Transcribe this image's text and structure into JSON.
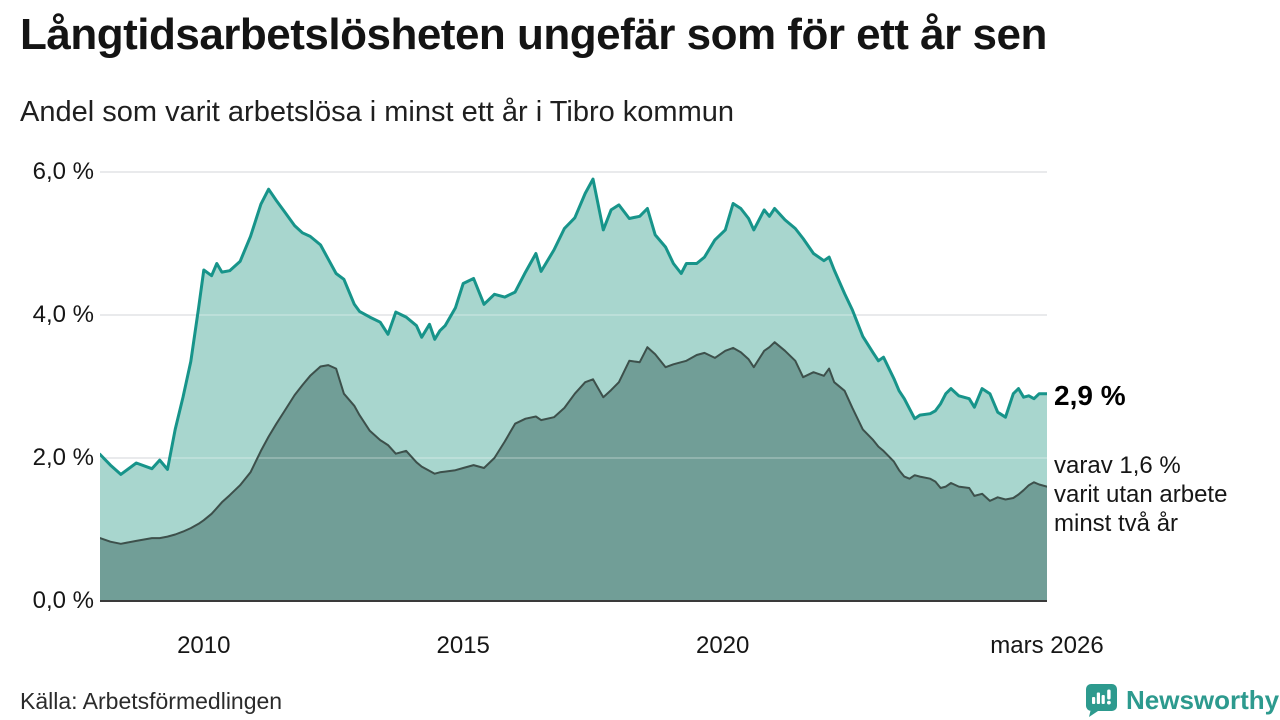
{
  "header": {
    "title": "Långtidsarbetslösheten ungefär som för ett år sen",
    "subtitle": "Andel som varit arbetslösa i minst ett år i Tibro kommun"
  },
  "annotations": {
    "latest_total": "2,9 %",
    "detail_lines": [
      "varav 1,6 %",
      "varit utan arbete",
      "minst två år"
    ]
  },
  "footer": {
    "source": "Källa: Arbetsförmedlingen",
    "brand": "Newsworthy",
    "brand_icon": "newsworthy-speech-bubble-bar-chart-icon",
    "brand_color": "#2d9a8e"
  },
  "chart_data": {
    "type": "area",
    "title": "Långtidsarbetslösheten ungefär som för ett år sen",
    "subtitle": "Andel som varit arbetslösa i minst ett år i Tibro kommun",
    "xlabel": "",
    "ylabel": "",
    "grid": true,
    "legend_position": "none",
    "x_domain": [
      2008,
      2026.25
    ],
    "y_domain": [
      0,
      6.2
    ],
    "x_ticks": [
      {
        "value": 2010,
        "label": "2010"
      },
      {
        "value": 2015,
        "label": "2015"
      },
      {
        "value": 2020,
        "label": "2020"
      },
      {
        "value": 2026.25,
        "label": "mars 2026"
      }
    ],
    "y_ticks": [
      {
        "value": 0,
        "label": "0,0 %"
      },
      {
        "value": 2,
        "label": "2,0 %"
      },
      {
        "value": 4,
        "label": "4,0 %"
      },
      {
        "value": 6,
        "label": "6,0 %"
      }
    ],
    "series": [
      {
        "id": "unemployed-at-least-one-year",
        "end_value_label": "2,9 %",
        "stroke": "#17948a",
        "fill": "#a8d6ce",
        "stroke_width": 3
      },
      {
        "id": "unemployed-at-least-two-years",
        "end_value_label": "1,6 %",
        "stroke": "#3d504b",
        "fill": "#719e97",
        "stroke_width": 2
      }
    ],
    "gridline_color": "#d9dade",
    "axis_line_color": "#3a3a3a",
    "points": [
      [
        2008.0,
        2.05,
        0.88
      ],
      [
        2008.2,
        1.9,
        0.83
      ],
      [
        2008.4,
        1.77,
        0.8
      ],
      [
        2008.7,
        1.93,
        0.84
      ],
      [
        2009.0,
        1.85,
        0.88
      ],
      [
        2009.15,
        1.97,
        0.88
      ],
      [
        2009.3,
        1.84,
        0.9
      ],
      [
        2009.45,
        2.4,
        0.93
      ],
      [
        2009.6,
        2.85,
        0.97
      ],
      [
        2009.75,
        3.35,
        1.02
      ],
      [
        2009.9,
        4.1,
        1.08
      ],
      [
        2010.0,
        4.63,
        1.13
      ],
      [
        2010.15,
        4.55,
        1.22
      ],
      [
        2010.25,
        4.72,
        1.3
      ],
      [
        2010.35,
        4.6,
        1.38
      ],
      [
        2010.5,
        4.62,
        1.48
      ],
      [
        2010.7,
        4.75,
        1.62
      ],
      [
        2010.9,
        5.1,
        1.8
      ],
      [
        2011.1,
        5.55,
        2.1
      ],
      [
        2011.25,
        5.76,
        2.3
      ],
      [
        2011.4,
        5.6,
        2.48
      ],
      [
        2011.55,
        5.45,
        2.65
      ],
      [
        2011.75,
        5.25,
        2.88
      ],
      [
        2011.9,
        5.15,
        3.02
      ],
      [
        2012.05,
        5.1,
        3.15
      ],
      [
        2012.25,
        4.98,
        3.28
      ],
      [
        2012.4,
        4.78,
        3.3
      ],
      [
        2012.55,
        4.58,
        3.25
      ],
      [
        2012.7,
        4.5,
        2.9
      ],
      [
        2012.9,
        4.15,
        2.73
      ],
      [
        2013.0,
        4.05,
        2.6
      ],
      [
        2013.2,
        3.97,
        2.38
      ],
      [
        2013.4,
        3.9,
        2.25
      ],
      [
        2013.55,
        3.73,
        2.18
      ],
      [
        2013.7,
        4.04,
        2.06
      ],
      [
        2013.9,
        3.97,
        2.1
      ],
      [
        2014.1,
        3.85,
        1.94
      ],
      [
        2014.2,
        3.69,
        1.88
      ],
      [
        2014.35,
        3.87,
        1.82
      ],
      [
        2014.45,
        3.66,
        1.78
      ],
      [
        2014.55,
        3.78,
        1.8
      ],
      [
        2014.65,
        3.85,
        1.81
      ],
      [
        2014.85,
        4.1,
        1.83
      ],
      [
        2015.0,
        4.44,
        1.86
      ],
      [
        2015.2,
        4.51,
        1.9
      ],
      [
        2015.4,
        4.15,
        1.86
      ],
      [
        2015.6,
        4.29,
        2.0
      ],
      [
        2015.8,
        4.25,
        2.23
      ],
      [
        2016.0,
        4.32,
        2.48
      ],
      [
        2016.2,
        4.6,
        2.55
      ],
      [
        2016.4,
        4.86,
        2.58
      ],
      [
        2016.5,
        4.61,
        2.53
      ],
      [
        2016.75,
        4.91,
        2.57
      ],
      [
        2016.95,
        5.21,
        2.7
      ],
      [
        2017.15,
        5.36,
        2.9
      ],
      [
        2017.35,
        5.7,
        3.06
      ],
      [
        2017.5,
        5.9,
        3.1
      ],
      [
        2017.7,
        5.19,
        2.85
      ],
      [
        2017.85,
        5.47,
        2.95
      ],
      [
        2018.0,
        5.54,
        3.06
      ],
      [
        2018.2,
        5.35,
        3.36
      ],
      [
        2018.4,
        5.38,
        3.34
      ],
      [
        2018.55,
        5.49,
        3.55
      ],
      [
        2018.7,
        5.12,
        3.45
      ],
      [
        2018.9,
        4.95,
        3.27
      ],
      [
        2019.05,
        4.72,
        3.31
      ],
      [
        2019.2,
        4.58,
        3.34
      ],
      [
        2019.3,
        4.72,
        3.36
      ],
      [
        2019.5,
        4.72,
        3.44
      ],
      [
        2019.65,
        4.81,
        3.47
      ],
      [
        2019.85,
        5.05,
        3.4
      ],
      [
        2020.05,
        5.19,
        3.5
      ],
      [
        2020.2,
        5.56,
        3.54
      ],
      [
        2020.35,
        5.49,
        3.48
      ],
      [
        2020.5,
        5.35,
        3.38
      ],
      [
        2020.6,
        5.19,
        3.27
      ],
      [
        2020.8,
        5.47,
        3.5
      ],
      [
        2020.9,
        5.38,
        3.55
      ],
      [
        2021.0,
        5.49,
        3.62
      ],
      [
        2021.2,
        5.33,
        3.5
      ],
      [
        2021.4,
        5.21,
        3.36
      ],
      [
        2021.55,
        5.07,
        3.13
      ],
      [
        2021.75,
        4.86,
        3.2
      ],
      [
        2021.95,
        4.76,
        3.15
      ],
      [
        2022.05,
        4.81,
        3.25
      ],
      [
        2022.15,
        4.63,
        3.06
      ],
      [
        2022.35,
        4.3,
        2.94
      ],
      [
        2022.5,
        4.07,
        2.7
      ],
      [
        2022.7,
        3.7,
        2.4
      ],
      [
        2022.9,
        3.47,
        2.25
      ],
      [
        2023.0,
        3.36,
        2.16
      ],
      [
        2023.1,
        3.41,
        2.1
      ],
      [
        2023.3,
        3.11,
        1.95
      ],
      [
        2023.4,
        2.94,
        1.83
      ],
      [
        2023.5,
        2.83,
        1.74
      ],
      [
        2023.6,
        2.69,
        1.71
      ],
      [
        2023.7,
        2.55,
        1.76
      ],
      [
        2023.8,
        2.6,
        1.74
      ],
      [
        2024.0,
        2.62,
        1.71
      ],
      [
        2024.1,
        2.66,
        1.67
      ],
      [
        2024.2,
        2.76,
        1.58
      ],
      [
        2024.3,
        2.9,
        1.6
      ],
      [
        2024.4,
        2.97,
        1.65
      ],
      [
        2024.55,
        2.87,
        1.6
      ],
      [
        2024.75,
        2.83,
        1.58
      ],
      [
        2024.85,
        2.71,
        1.47
      ],
      [
        2025.0,
        2.97,
        1.5
      ],
      [
        2025.15,
        2.9,
        1.4
      ],
      [
        2025.3,
        2.64,
        1.45
      ],
      [
        2025.45,
        2.57,
        1.42
      ],
      [
        2025.6,
        2.9,
        1.44
      ],
      [
        2025.7,
        2.97,
        1.49
      ],
      [
        2025.8,
        2.85,
        1.55
      ],
      [
        2025.9,
        2.87,
        1.62
      ],
      [
        2026.0,
        2.83,
        1.66
      ],
      [
        2026.1,
        2.9,
        1.63
      ],
      [
        2026.25,
        2.9,
        1.6
      ]
    ]
  }
}
